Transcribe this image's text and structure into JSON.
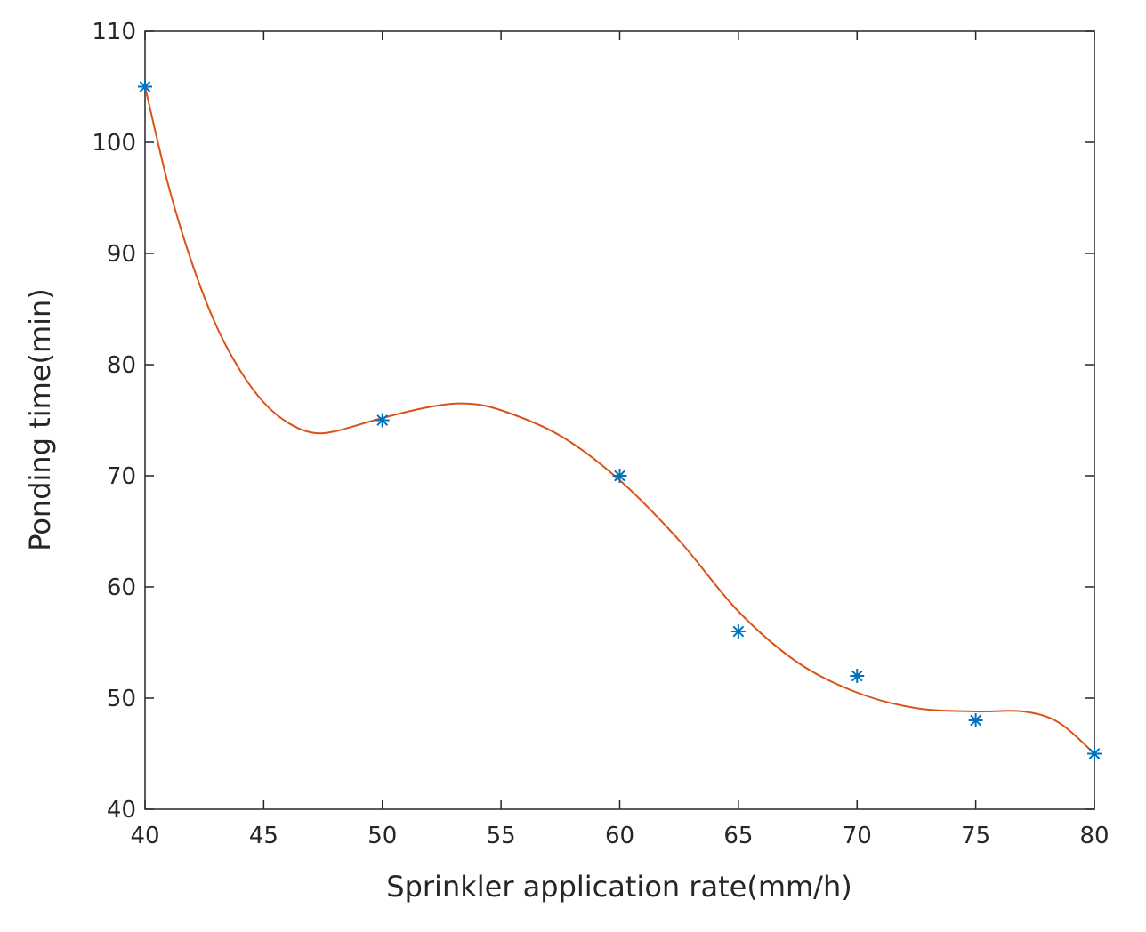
{
  "chart_data": {
    "type": "scatter",
    "x_label": "Sprinkler application rate(mm/h)",
    "y_label": "Ponding time(min)",
    "xlim": [
      40,
      80
    ],
    "xticks": [
      40,
      45,
      50,
      55,
      60,
      65,
      70,
      75,
      80
    ],
    "ylim": [
      40,
      110
    ],
    "yticks": [
      40,
      50,
      60,
      70,
      80,
      90,
      100,
      110
    ],
    "grid": false,
    "box": true,
    "series": [
      {
        "type": "scatter",
        "marker": "asterisk",
        "color": "#0072bd",
        "x": [
          40,
          50,
          60,
          65,
          70,
          75,
          80
        ],
        "values": [
          105,
          75,
          70,
          56,
          52,
          48,
          45
        ]
      },
      {
        "type": "line",
        "smooth": true,
        "color": "#d95319",
        "x": [
          40,
          41,
          42,
          43,
          44,
          45,
          46,
          47,
          48,
          50,
          52,
          53.5,
          55,
          57.5,
          60,
          62.5,
          65,
          67.5,
          70,
          72.5,
          75,
          77,
          78.5,
          80
        ],
        "values": [
          105,
          96,
          89,
          83.5,
          79.5,
          76.6,
          74.8,
          73.9,
          74.0,
          75.2,
          76.2,
          76.5,
          75.9,
          73.6,
          69.6,
          64.2,
          57.8,
          53.2,
          50.5,
          49.1,
          48.8,
          48.8,
          47.8,
          45
        ]
      }
    ]
  }
}
